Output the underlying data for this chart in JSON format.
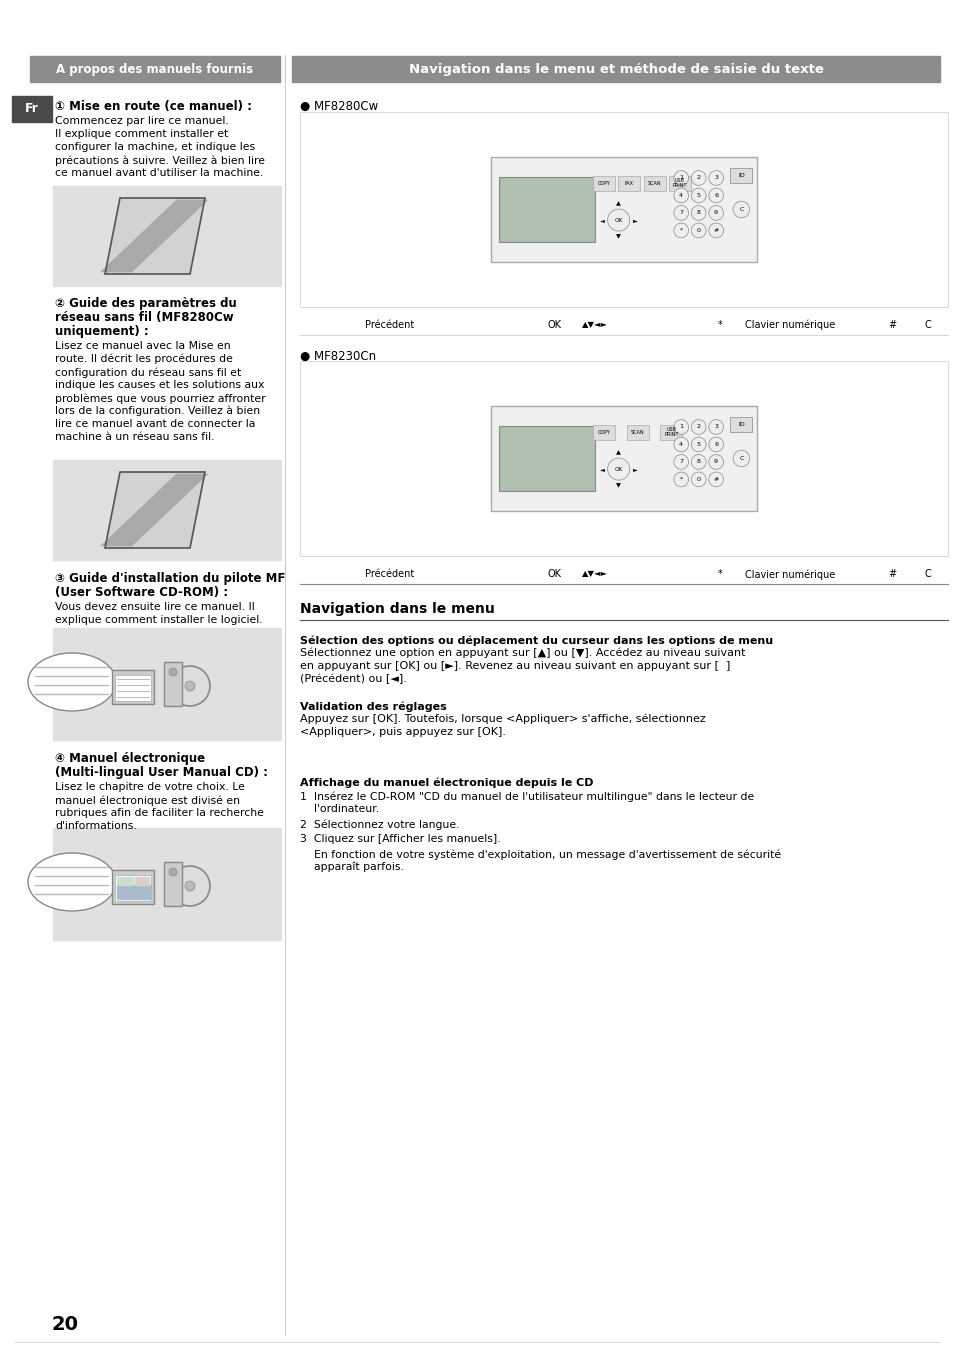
{
  "bg_color": "#ffffff",
  "left_header": "A propos des manuels fournis",
  "right_header": "Navigation dans le menu et méthode de saisie du texte",
  "section1_title": "① Mise en route (ce manuel) :",
  "section1_body": "Commencez par lire ce manuel.\nIl explique comment installer et\nconfigurer la machine, et indique les\nprécautions à suivre. Veillez à bien lire\nce manuel avant d'utiliser la machine.",
  "section2_title_lines": [
    "② Guide des paramètres du",
    "réseau sans fil (MF8280Cw",
    "uniquement) :"
  ],
  "section2_body": "Lisez ce manuel avec la Mise en\nroute. Il décrit les procédures de\nconfiguration du réseau sans fil et\nindique les causes et les solutions aux\nproblèmes que vous pourriez affronter\nlors de la configuration. Veillez à bien\nlire ce manuel avant de connecter la\nmachine à un réseau sans fil.",
  "section3_title_lines": [
    "③ Guide d'installation du pilote MF",
    "(User Software CD-ROM) :"
  ],
  "section3_body": "Vous devez ensuite lire ce manuel. Il\nexplique comment installer le logiciel.",
  "section4_title_lines": [
    "④ Manuel électronique",
    "(Multi-lingual User Manual CD) :"
  ],
  "section4_body": "Lisez le chapitre de votre choix. Le\nmanuel électronique est divisé en\nrubriques afin de faciliter la recherche\nd'informations.",
  "right_mf8280_label": "● MF8280Cw",
  "right_mf8230_label": "● MF8230Cn",
  "nav_section_title": "Navigation dans le menu",
  "nav_bold1": "Sélection des options ou déplacement du curseur dans les options de menu",
  "nav_body1": "Sélectionnez une option en appuyant sur [▲] ou [▼]. Accédez au niveau suivant\nen appuyant sur [OK] ou [►]. Revenez au niveau suivant en appuyant sur [  ]\n(Précédent) ou [◄].",
  "nav_bold2": "Validation des réglages",
  "nav_body2": "Appuyez sur [OK]. Toutefois, lorsque <Appliquer> s'affiche, sélectionnez\n<Appliquer>, puis appuyez sur [OK].",
  "nav_bold3": "Affichage du manuel électronique depuis le CD",
  "nav_body3_items": [
    "1  Insérez le CD-ROM \"CD du manuel de l'utilisateur multilingue\" dans le lecteur de\n    l'ordinateur.",
    "2  Sélectionnez votre langue.",
    "3  Cliquez sur [Afficher les manuels].",
    "    En fonction de votre système d'exploitation, un message d'avertissement de sécurité\n    apparaît parfois."
  ],
  "page_number": "20",
  "header_bg": "#8c8c8c",
  "fr_tab_bg": "#4a4a4a",
  "image_bg": "#e0e0e0"
}
